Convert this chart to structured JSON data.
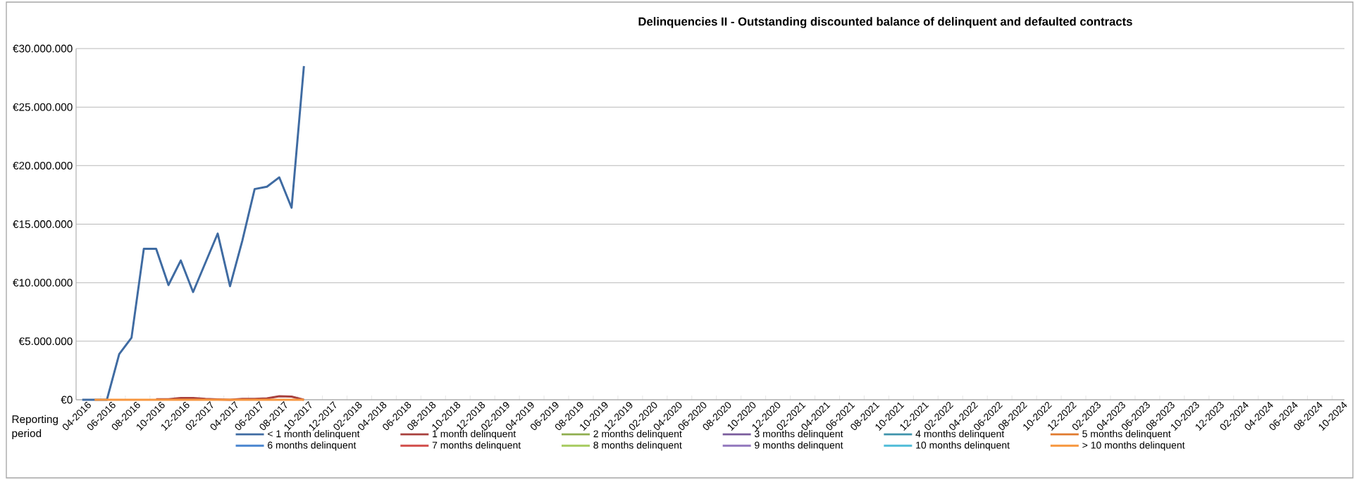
{
  "chart_data": {
    "type": "line",
    "title": "Delinquencies II - Outstanding discounted balance of delinquent and defaulted contracts",
    "xlabel": "Reporting period",
    "categories": [
      "04-2016",
      null,
      "06-2016",
      null,
      "08-2016",
      null,
      "10-2016",
      null,
      "12-2016",
      null,
      "02-2017",
      null,
      "04-2017",
      null,
      "06-2017",
      null,
      "08-2017",
      null,
      "10-2017",
      null,
      "12-2017",
      null,
      "02-2018",
      null,
      "04-2018",
      null,
      "06-2018",
      null,
      "08-2018",
      null,
      "10-2018",
      null,
      "12-2018",
      null,
      "02-2019",
      null,
      "04-2019",
      null,
      "06-2019",
      null,
      "08-2019",
      null,
      "10-2019",
      null,
      "12-2019",
      null,
      "02-2020",
      null,
      "04-2020",
      null,
      "06-2020",
      null,
      "08-2020",
      null,
      "10-2020",
      null,
      "12-2020",
      null,
      "02-2021",
      null,
      "04-2021",
      null,
      "06-2021",
      null,
      "08-2021",
      null,
      "10-2021",
      null,
      "12-2021",
      null,
      "02-2022",
      null,
      "04-2022",
      null,
      "06-2022",
      null,
      "08-2022",
      null,
      "10-2022",
      null,
      "12-2022",
      null,
      "02-2023",
      null,
      "04-2023",
      null,
      "06-2023",
      null,
      "08-2023",
      null,
      "10-2023",
      null,
      "12-2023",
      null,
      "02-2024",
      null,
      "04-2024",
      null,
      "06-2024",
      null,
      "08-2024",
      null,
      "10-2024"
    ],
    "series": [
      {
        "name": "< 1 month delinquent",
        "color": "#3f6ba2",
        "values": [
          0,
          0,
          0,
          3900000,
          5300000,
          12900000,
          12900000,
          9800000,
          11900000,
          9200000,
          11700000,
          14200000,
          9700000,
          13600000,
          18000000,
          18200000,
          19000000,
          16400000,
          28500000,
          null,
          null,
          null,
          null,
          null,
          null,
          null,
          null,
          null,
          null,
          null,
          null,
          null,
          null,
          null,
          null,
          null,
          null,
          null,
          null,
          null,
          null,
          null,
          null,
          null,
          null,
          null,
          null,
          null,
          null,
          null,
          null,
          null,
          null,
          null,
          null,
          null,
          null,
          null,
          null,
          null,
          null,
          null,
          null,
          null,
          null,
          null,
          null,
          null,
          null,
          null,
          null,
          null,
          null,
          null,
          null,
          null,
          null,
          null,
          null,
          null,
          null,
          null,
          null,
          null,
          null,
          null,
          null,
          null,
          null,
          null,
          null,
          null,
          null,
          null,
          null,
          null,
          null,
          null,
          null,
          null,
          null,
          null,
          null
        ]
      },
      {
        "name": "1 month delinquent",
        "color": "#a8403d",
        "values": [
          null,
          null,
          null,
          null,
          null,
          null,
          50000,
          50000,
          150000,
          150000,
          70000,
          30000,
          0,
          80000,
          80000,
          120000,
          300000,
          270000,
          0,
          null,
          null,
          null,
          null,
          null,
          null,
          null,
          null,
          null,
          null,
          null,
          null,
          null,
          null,
          null,
          null,
          null,
          null,
          null,
          null,
          null,
          null,
          null,
          null,
          null,
          null,
          null,
          null,
          null,
          null,
          null,
          null,
          null,
          null,
          null,
          null,
          null,
          null,
          null,
          null,
          null,
          null,
          null,
          null,
          null,
          null,
          null,
          null,
          null,
          null,
          null,
          null,
          null,
          null,
          null,
          null,
          null,
          null,
          null,
          null,
          null,
          null,
          null,
          null,
          null,
          null,
          null,
          null,
          null,
          null,
          null,
          null,
          null,
          null,
          null,
          null,
          null,
          null,
          null,
          null,
          null,
          null,
          null,
          null
        ]
      },
      {
        "name": "2 months delinquent",
        "color": "#8fae4f",
        "values": [
          null,
          null,
          null,
          null,
          null,
          null,
          null,
          null,
          null,
          null,
          null,
          null,
          null,
          null,
          null,
          null,
          null,
          null,
          null,
          null,
          null,
          null,
          null,
          null,
          null,
          null,
          null,
          null,
          null,
          null,
          null,
          null,
          null,
          null,
          null,
          null,
          null,
          null,
          null,
          null,
          null,
          null,
          null,
          null,
          null,
          null,
          null,
          null,
          null,
          null,
          null,
          null,
          null,
          null,
          null,
          null,
          null,
          null,
          null,
          null,
          null,
          null,
          null,
          null,
          null,
          null,
          null,
          null,
          null,
          null,
          null,
          null,
          null,
          null,
          null,
          null,
          null,
          null,
          null,
          null,
          null,
          null,
          null,
          null,
          null,
          null,
          null,
          null,
          null,
          null,
          null,
          null,
          null,
          null,
          null,
          null,
          null,
          null,
          null,
          null,
          null,
          null,
          null
        ]
      },
      {
        "name": "3 months delinquent",
        "color": "#7a5c9c",
        "values": [
          null,
          null,
          null,
          null,
          null,
          null,
          null,
          null,
          null,
          null,
          null,
          null,
          null,
          null,
          null,
          null,
          null,
          null,
          null,
          null,
          null,
          null,
          null,
          null,
          null,
          null,
          null,
          null,
          null,
          null,
          null,
          null,
          null,
          null,
          null,
          null,
          null,
          null,
          null,
          null,
          null,
          null,
          null,
          null,
          null,
          null,
          null,
          null,
          null,
          null,
          null,
          null,
          null,
          null,
          null,
          null,
          null,
          null,
          null,
          null,
          null,
          null,
          null,
          null,
          null,
          null,
          null,
          null,
          null,
          null,
          null,
          null,
          null,
          null,
          null,
          null,
          null,
          null,
          null,
          null,
          null,
          null,
          null,
          null,
          null,
          null,
          null,
          null,
          null,
          null,
          null,
          null,
          null,
          null,
          null,
          null,
          null,
          null,
          null,
          null,
          null,
          null,
          null
        ]
      },
      {
        "name": "4 months delinquent",
        "color": "#3f93ab",
        "values": [
          null,
          null,
          null,
          null,
          null,
          null,
          null,
          null,
          null,
          null,
          null,
          null,
          null,
          null,
          null,
          null,
          null,
          null,
          null,
          null,
          null,
          null,
          null,
          null,
          null,
          null,
          null,
          null,
          null,
          null,
          null,
          null,
          null,
          null,
          null,
          null,
          null,
          null,
          null,
          null,
          null,
          null,
          null,
          null,
          null,
          null,
          null,
          null,
          null,
          null,
          null,
          null,
          null,
          null,
          null,
          null,
          null,
          null,
          null,
          null,
          null,
          null,
          null,
          null,
          null,
          null,
          null,
          null,
          null,
          null,
          null,
          null,
          null,
          null,
          null,
          null,
          null,
          null,
          null,
          null,
          null,
          null,
          null,
          null,
          null,
          null,
          null,
          null,
          null,
          null,
          null,
          null,
          null,
          null,
          null,
          null,
          null,
          null,
          null,
          null,
          null,
          null,
          null
        ]
      },
      {
        "name": "5 months delinquent",
        "color": "#e07a2e",
        "values": [
          null,
          null,
          null,
          null,
          null,
          null,
          null,
          null,
          null,
          null,
          null,
          null,
          null,
          null,
          null,
          null,
          null,
          null,
          null,
          null,
          null,
          null,
          null,
          null,
          null,
          null,
          null,
          null,
          null,
          null,
          null,
          null,
          null,
          null,
          null,
          null,
          null,
          null,
          null,
          null,
          null,
          null,
          null,
          null,
          null,
          null,
          null,
          null,
          null,
          null,
          null,
          null,
          null,
          null,
          null,
          null,
          null,
          null,
          null,
          null,
          null,
          null,
          null,
          null,
          null,
          null,
          null,
          null,
          null,
          null,
          null,
          null,
          null,
          null,
          null,
          null,
          null,
          null,
          null,
          null,
          null,
          null,
          null,
          null,
          null,
          null,
          null,
          null,
          null,
          null,
          null,
          null,
          null,
          null,
          null,
          null,
          null,
          null,
          null,
          null,
          null,
          null,
          null
        ]
      },
      {
        "name": "6 months delinquent",
        "color": "#4a86d0",
        "values": [
          null,
          null,
          null,
          null,
          null,
          null,
          null,
          null,
          null,
          null,
          null,
          null,
          null,
          null,
          null,
          null,
          null,
          null,
          null,
          null,
          null,
          null,
          null,
          null,
          null,
          null,
          null,
          null,
          null,
          null,
          null,
          null,
          null,
          null,
          null,
          null,
          null,
          null,
          null,
          null,
          null,
          null,
          null,
          null,
          null,
          null,
          null,
          null,
          null,
          null,
          null,
          null,
          null,
          null,
          null,
          null,
          null,
          null,
          null,
          null,
          null,
          null,
          null,
          null,
          null,
          null,
          null,
          null,
          null,
          null,
          null,
          null,
          null,
          null,
          null,
          null,
          null,
          null,
          null,
          null,
          null,
          null,
          null,
          null,
          null,
          null,
          null,
          null,
          null,
          null,
          null,
          null,
          null,
          null,
          null,
          null,
          null,
          null,
          null,
          null,
          null,
          null,
          null
        ]
      },
      {
        "name": "7 months delinquent",
        "color": "#d24d4a",
        "values": [
          null,
          null,
          null,
          null,
          null,
          null,
          null,
          null,
          null,
          null,
          null,
          null,
          null,
          null,
          null,
          null,
          null,
          null,
          null,
          null,
          null,
          null,
          null,
          null,
          null,
          null,
          null,
          null,
          null,
          null,
          null,
          null,
          null,
          null,
          null,
          null,
          null,
          null,
          null,
          null,
          null,
          null,
          null,
          null,
          null,
          null,
          null,
          null,
          null,
          null,
          null,
          null,
          null,
          null,
          null,
          null,
          null,
          null,
          null,
          null,
          null,
          null,
          null,
          null,
          null,
          null,
          null,
          null,
          null,
          null,
          null,
          null,
          null,
          null,
          null,
          null,
          null,
          null,
          null,
          null,
          null,
          null,
          null,
          null,
          null,
          null,
          null,
          null,
          null,
          null,
          null,
          null,
          null,
          null,
          null,
          null,
          null,
          null,
          null,
          null,
          null,
          null,
          null
        ]
      },
      {
        "name": "8 months delinquent",
        "color": "#a6cb5f",
        "values": [
          null,
          null,
          null,
          null,
          null,
          null,
          null,
          null,
          null,
          null,
          null,
          null,
          null,
          null,
          null,
          null,
          null,
          null,
          null,
          null,
          null,
          null,
          null,
          null,
          null,
          null,
          null,
          null,
          null,
          null,
          null,
          null,
          null,
          null,
          null,
          null,
          null,
          null,
          null,
          null,
          null,
          null,
          null,
          null,
          null,
          null,
          null,
          null,
          null,
          null,
          null,
          null,
          null,
          null,
          null,
          null,
          null,
          null,
          null,
          null,
          null,
          null,
          null,
          null,
          null,
          null,
          null,
          null,
          null,
          null,
          null,
          null,
          null,
          null,
          null,
          null,
          null,
          null,
          null,
          null,
          null,
          null,
          null,
          null,
          null,
          null,
          null,
          null,
          null,
          null,
          null,
          null,
          null,
          null,
          null,
          null,
          null,
          null,
          null,
          null,
          null,
          null,
          null
        ]
      },
      {
        "name": "9 months delinquent",
        "color": "#9277bd",
        "values": [
          null,
          null,
          null,
          null,
          null,
          null,
          null,
          null,
          null,
          null,
          null,
          null,
          null,
          null,
          null,
          null,
          null,
          null,
          null,
          null,
          null,
          null,
          null,
          null,
          null,
          null,
          null,
          null,
          null,
          null,
          null,
          null,
          null,
          null,
          null,
          null,
          null,
          null,
          null,
          null,
          null,
          null,
          null,
          null,
          null,
          null,
          null,
          null,
          null,
          null,
          null,
          null,
          null,
          null,
          null,
          null,
          null,
          null,
          null,
          null,
          null,
          null,
          null,
          null,
          null,
          null,
          null,
          null,
          null,
          null,
          null,
          null,
          null,
          null,
          null,
          null,
          null,
          null,
          null,
          null,
          null,
          null,
          null,
          null,
          null,
          null,
          null,
          null,
          null,
          null,
          null,
          null,
          null,
          null,
          null,
          null,
          null,
          null,
          null,
          null,
          null,
          null,
          null
        ]
      },
      {
        "name": "10 months delinquent",
        "color": "#4fbcd8",
        "values": [
          null,
          null,
          null,
          null,
          null,
          null,
          null,
          null,
          null,
          null,
          null,
          null,
          null,
          null,
          null,
          null,
          null,
          null,
          null,
          null,
          null,
          null,
          null,
          null,
          null,
          null,
          null,
          null,
          null,
          null,
          null,
          null,
          null,
          null,
          null,
          null,
          null,
          null,
          null,
          null,
          null,
          null,
          null,
          null,
          null,
          null,
          null,
          null,
          null,
          null,
          null,
          null,
          null,
          null,
          null,
          null,
          null,
          null,
          null,
          null,
          null,
          null,
          null,
          null,
          null,
          null,
          null,
          null,
          null,
          null,
          null,
          null,
          null,
          null,
          null,
          null,
          null,
          null,
          null,
          null,
          null,
          null,
          null,
          null,
          null,
          null,
          null,
          null,
          null,
          null,
          null,
          null,
          null,
          null,
          null,
          null,
          null,
          null,
          null,
          null,
          null,
          null,
          null
        ]
      },
      {
        "name": "> 10 months delinquent",
        "color": "#f7963e",
        "values": [
          null,
          0,
          0,
          0,
          0,
          0,
          0,
          0,
          0,
          0,
          0,
          0,
          0,
          0,
          0,
          0,
          0,
          0,
          0,
          null,
          null,
          null,
          null,
          null,
          null,
          null,
          null,
          null,
          null,
          null,
          null,
          null,
          null,
          null,
          null,
          null,
          null,
          null,
          null,
          null,
          null,
          null,
          null,
          null,
          null,
          null,
          null,
          null,
          null,
          null,
          null,
          null,
          null,
          null,
          null,
          null,
          null,
          null,
          null,
          null,
          null,
          null,
          null,
          null,
          null,
          null,
          null,
          null,
          null,
          null,
          null,
          null,
          null,
          null,
          null,
          null,
          null,
          null,
          null,
          null,
          null,
          null,
          null,
          null,
          null,
          null,
          null,
          null,
          null,
          null,
          null,
          null,
          null,
          null,
          null,
          null,
          null,
          null,
          null,
          null,
          null,
          null,
          null
        ]
      }
    ],
    "ylim": [
      0,
      30000000
    ],
    "yticks": [
      {
        "value": 0,
        "label": "€0"
      },
      {
        "value": 5000000,
        "label": "€5.000.000"
      },
      {
        "value": 10000000,
        "label": "€10.000.000"
      },
      {
        "value": 15000000,
        "label": "€15.000.000"
      },
      {
        "value": 20000000,
        "label": "€20.000.000"
      },
      {
        "value": 25000000,
        "label": "€25.000.000"
      },
      {
        "value": 30000000,
        "label": "€30.000.000"
      }
    ],
    "grid": "y",
    "legend": "bottom"
  }
}
